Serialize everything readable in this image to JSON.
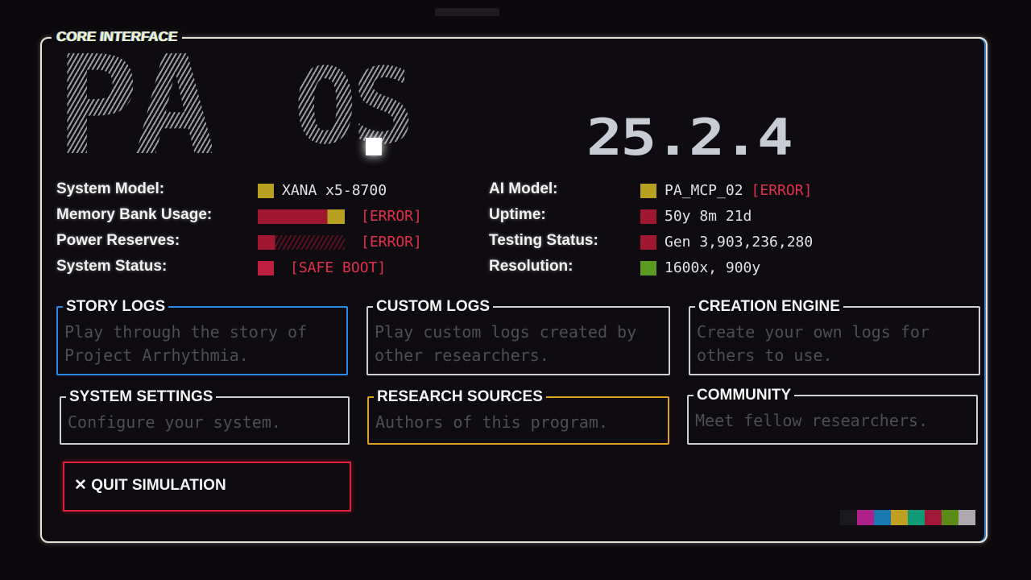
{
  "frame_label": "CORE INTERFACE",
  "logo": {
    "title": "PA.OS",
    "title_main": "PA",
    "title_suffix": "OS",
    "version": "25.2.4"
  },
  "system_info": {
    "left": [
      {
        "label": "System Model:",
        "value": "XANA x5-8700",
        "status": "",
        "swatch": "#b8a020"
      },
      {
        "label": "Memory Bank Usage:",
        "value": "",
        "status": "[ERROR]",
        "swatch": "#c02040"
      },
      {
        "label": "Power Reserves:",
        "value": "",
        "status": "[ERROR]",
        "swatch": "#c02040"
      },
      {
        "label": "System Status:",
        "value": "",
        "status": "[SAFE BOOT]",
        "swatch": "#c02040"
      }
    ],
    "right": [
      {
        "label": "AI Model:",
        "value": "PA_MCP_02",
        "status": "[ERROR]",
        "swatch": "#b8a020"
      },
      {
        "label": "Uptime:",
        "value": "50y 8m 21d",
        "status": "",
        "swatch": "#a01830"
      },
      {
        "label": "Testing Status:",
        "value": "Gen 3,903,236,280",
        "status": "",
        "swatch": "#a01830"
      },
      {
        "label": "Resolution:",
        "value": "1600x, 900y",
        "status": "",
        "swatch": "#5a9a20"
      }
    ]
  },
  "menu": [
    {
      "title": "STORY LOGS",
      "desc": "Play through the story of Project Arrhythmia.",
      "color": "#2a8ae8"
    },
    {
      "title": "CUSTOM LOGS",
      "desc": "Play custom logs created by other researchers.",
      "color": "#d0d0d0"
    },
    {
      "title": "CREATION ENGINE",
      "desc": "Create your own logs for others to use.",
      "color": "#d0d0d0"
    },
    {
      "title": "SYSTEM SETTINGS",
      "desc": "Configure your system.",
      "color": "#d0d0d0"
    },
    {
      "title": "RESEARCH SOURCES",
      "desc": "Authors of this program.",
      "color": "#e0a020"
    },
    {
      "title": "COMMUNITY",
      "desc": "Meet fellow researchers.",
      "color": "#d0d0d0"
    }
  ],
  "quit": {
    "icon": "x-icon",
    "glyph": "✕",
    "label": "QUIT SIMULATION",
    "color": "#e0203a"
  },
  "palette": [
    "#1a1a1e",
    "#b0208a",
    "#1a78b0",
    "#c0a020",
    "#109a78",
    "#a01838",
    "#5a8a18",
    "#b0a8b0"
  ]
}
